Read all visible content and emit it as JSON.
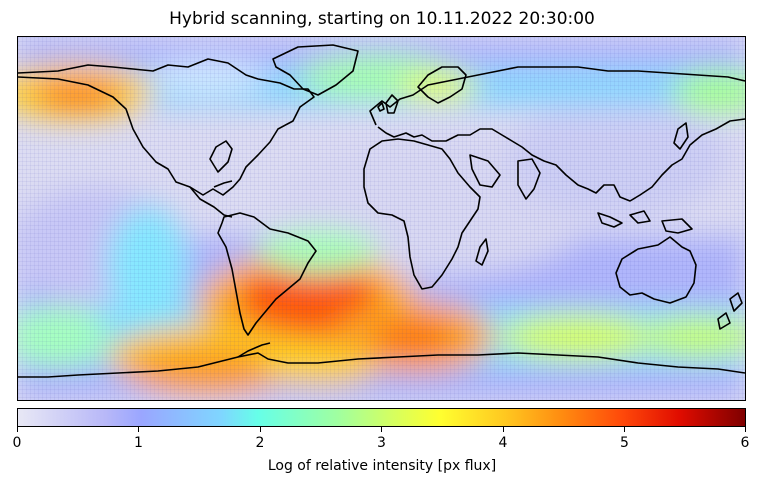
{
  "title": "Hybrid scanning, starting on 10.11.2022 20:30:00",
  "colorbar": {
    "label": "Log of relative intensity [px flux]",
    "min": 0,
    "max": 6,
    "ticks": [
      "0",
      "1",
      "2",
      "3",
      "4",
      "5",
      "6"
    ],
    "colormap": "jet (light)"
  },
  "map": {
    "projection": "plate-carree",
    "features": [
      "coastlines",
      "pixel grid"
    ],
    "hotspots": [
      {
        "region": "South Atlantic",
        "level": 5.0
      },
      {
        "region": "Southern Ocean south of Africa",
        "level": 4.6
      },
      {
        "region": "Southern Ocean near Antarctica",
        "level": 4.2
      },
      {
        "region": "Alaska / Bering Sea",
        "level": 3.8
      },
      {
        "region": "North Atlantic subpolar",
        "level": 2.6
      },
      {
        "region": "Scandinavia / North Sea",
        "level": 2.4
      },
      {
        "region": "Southern Ocean south of Australia",
        "level": 2.6
      }
    ]
  }
}
